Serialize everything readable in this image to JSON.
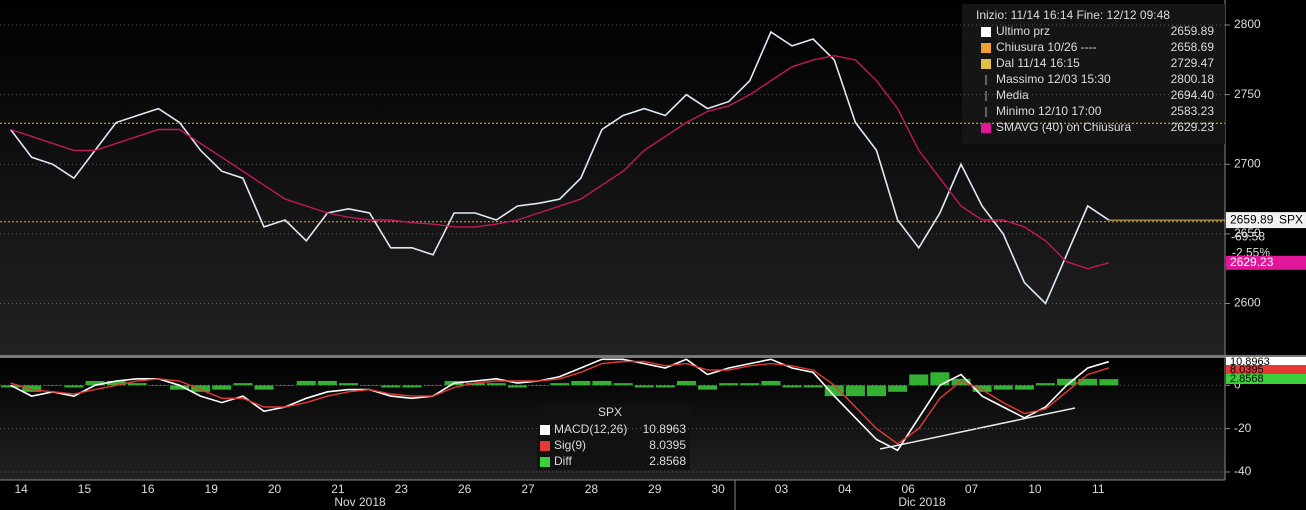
{
  "chart_data": [
    {
      "type": "line",
      "ticker": "SPX",
      "categories": [
        "14",
        null,
        null,
        "15",
        null,
        null,
        "16",
        null,
        null,
        "19",
        null,
        null,
        "20",
        null,
        null,
        "21",
        null,
        null,
        "23",
        null,
        null,
        "26",
        null,
        null,
        "27",
        null,
        null,
        "28",
        null,
        null,
        "29",
        null,
        null,
        "30",
        null,
        null,
        "03",
        null,
        null,
        "04",
        null,
        null,
        "06",
        null,
        null,
        "07",
        null,
        null,
        "10",
        null,
        null,
        "11",
        null,
        null,
        null,
        null,
        null,
        null
      ],
      "x_groups": [
        "Nov 2018",
        "Dic 2018"
      ],
      "series": [
        {
          "name": "Ultimo prz",
          "color": "#dfe9f7",
          "values": [
            2725,
            2705,
            2700,
            2690,
            2710,
            2730,
            2735,
            2740,
            2730,
            2710,
            2695,
            2690,
            2655,
            2660,
            2645,
            2665,
            2668,
            2665,
            2640,
            2640,
            2635,
            2665,
            2665,
            2660,
            2670,
            2672,
            2675,
            2690,
            2725,
            2735,
            2740,
            2735,
            2750,
            2740,
            2745,
            2760,
            2795,
            2785,
            2790,
            2775,
            2730,
            2710,
            2660,
            2640,
            2665,
            2700,
            2670,
            2650,
            2615,
            2600,
            2635,
            2670,
            2659.89,
            null,
            null,
            null,
            null,
            null
          ]
        },
        {
          "name": "SMAVG (40)  on Chiusura",
          "color": "#c2185b",
          "values": [
            2725,
            2720,
            2715,
            2710,
            2710,
            2715,
            2720,
            2725,
            2725,
            2715,
            2705,
            2695,
            2685,
            2675,
            2670,
            2665,
            2662,
            2660,
            2660,
            2658,
            2657,
            2655,
            2655,
            2657,
            2660,
            2665,
            2670,
            2675,
            2685,
            2695,
            2710,
            2720,
            2730,
            2738,
            2742,
            2750,
            2760,
            2770,
            2775,
            2778,
            2775,
            2760,
            2740,
            2710,
            2690,
            2670,
            2660,
            2660,
            2655,
            2645,
            2630,
            2625,
            2629.23,
            null,
            null,
            null,
            null,
            null
          ]
        }
      ],
      "ylim": [
        2563,
        2818
      ],
      "yticks": [
        2600,
        2650,
        2700,
        2750,
        2800
      ],
      "grid": true,
      "change": -69.58,
      "change_pct": {
        "value": -2.55,
        "label": "-2.55%"
      },
      "legend": {
        "title": "Inizio: 11/14 16:14 Fine: 12/12 09:48",
        "entries": [
          {
            "name": "Ultimo prz",
            "value": 2659.89,
            "color": "#ffffff"
          },
          {
            "name": "Chiusura 10/26 ----",
            "value": 2658.69,
            "color": "#f0a030",
            "style": "dotted-line"
          },
          {
            "name": "Dal 11/14 16:15",
            "value": 2729.47,
            "color": "#e0c040",
            "style": "dotted-line"
          },
          {
            "name": "Massimo 12/03 15:30",
            "value": 2800.18
          },
          {
            "name": "Media",
            "value": {
              "value": 2694.4,
              "label": "2694.40"
            }
          },
          {
            "name": "Minimo 12/10 17:00",
            "value": 2583.23
          },
          {
            "name": "SMAVG (40)  on Chiusura",
            "value": 2629.23,
            "color": "#e0179a"
          }
        ]
      }
    },
    {
      "type": "line",
      "title": "SPX",
      "series": [
        {
          "name": "MACD(12,26)",
          "color": "#ffffff",
          "values": [
            0,
            -5,
            -3,
            -5,
            0,
            2,
            3,
            3,
            0,
            -5,
            -8,
            -5,
            -12,
            -10,
            -6,
            -3,
            -2,
            -2,
            -5,
            -6,
            -5,
            1,
            2,
            3,
            1,
            2,
            4,
            8,
            12,
            12,
            10,
            8,
            12,
            5,
            8,
            10,
            12,
            8,
            6,
            -5,
            -15,
            -25,
            -30,
            -15,
            0,
            5,
            -5,
            -10,
            -15,
            -10,
            0,
            8,
            10.8963,
            null,
            null,
            null,
            null,
            null
          ]
        },
        {
          "name": "Sig(9)",
          "color": "#e53935",
          "values": [
            1,
            -2,
            -3,
            -4,
            -2,
            0,
            2,
            3,
            2,
            -2,
            -6,
            -6,
            -10,
            -10,
            -8,
            -5,
            -3,
            -2,
            -4,
            -5,
            -5,
            -1,
            1,
            2,
            2,
            2,
            3,
            6,
            10,
            11,
            11,
            9,
            10,
            7,
            7,
            9,
            10,
            9,
            7,
            0,
            -10,
            -20,
            -27,
            -20,
            -6,
            2,
            -2,
            -8,
            -13,
            -11,
            -3,
            5,
            8.0395,
            null,
            null,
            null,
            null,
            null
          ]
        },
        {
          "name": "Diff",
          "type": "bar",
          "color": "#3ccf3c",
          "values": [
            -1,
            -3,
            0,
            -1,
            2,
            2,
            1,
            0,
            -2,
            -3,
            -2,
            1,
            -2,
            0,
            2,
            2,
            1,
            0,
            -1,
            -1,
            0,
            2,
            1,
            1,
            -1,
            0,
            1,
            2,
            2,
            1,
            -1,
            -1,
            2,
            -2,
            1,
            1,
            2,
            -1,
            -1,
            -5,
            -5,
            -5,
            -3,
            5,
            6,
            3,
            -3,
            -2,
            -2,
            1,
            3,
            3,
            2.8568,
            null,
            null,
            null,
            null,
            null
          ]
        }
      ],
      "ylim": [
        -43.7,
        12.6
      ],
      "yticks": [
        -40,
        -20,
        0
      ],
      "grid": true
    }
  ]
}
